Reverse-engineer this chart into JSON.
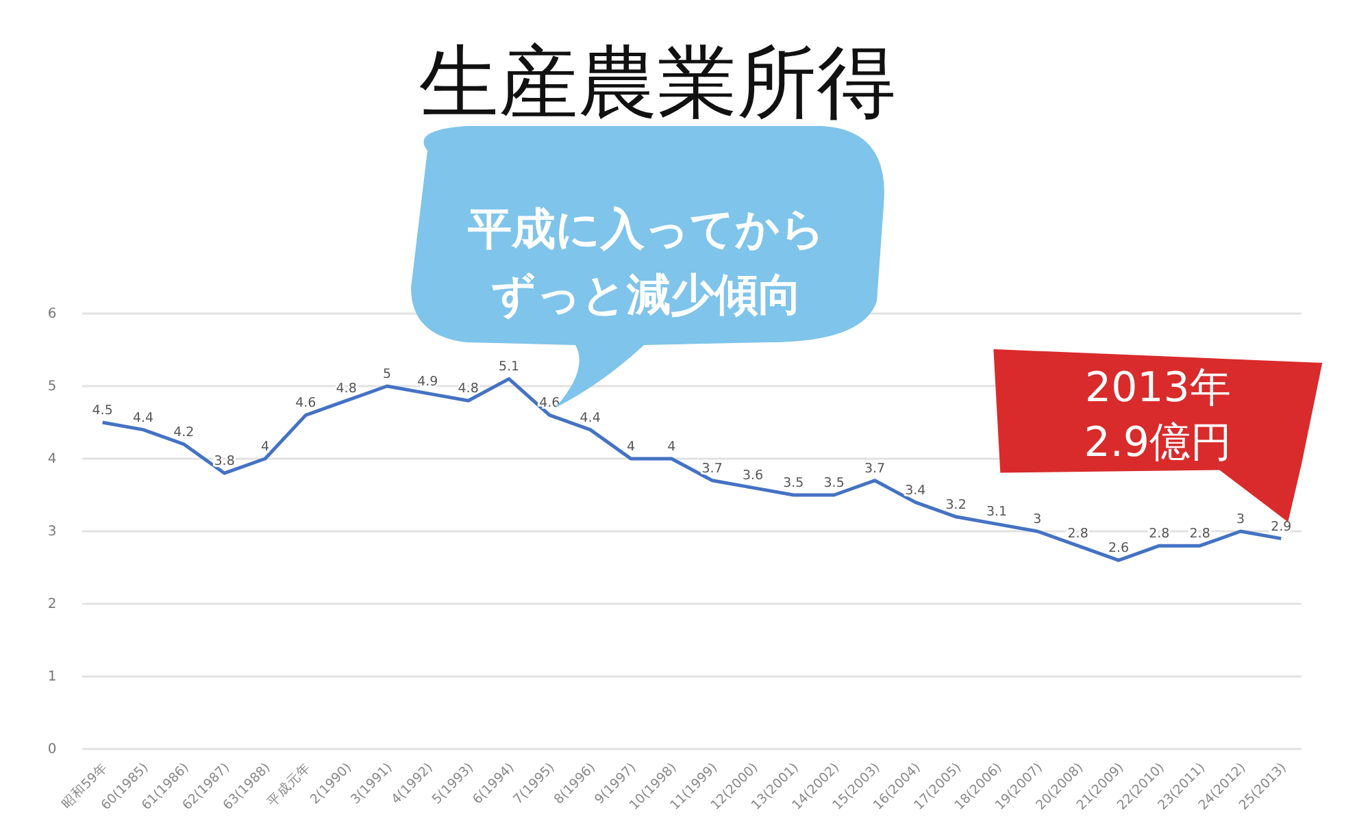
{
  "chart_data": {
    "type": "line",
    "title": "生産農業所得",
    "categories": [
      "昭和59年",
      "60(1985)",
      "61(1986)",
      "62(1987)",
      "63(1988)",
      "平成元年",
      "2(1990)",
      "3(1991)",
      "4(1992)",
      "5(1993)",
      "6(1994)",
      "7(1995)",
      "8(1996)",
      "9(1997)",
      "10(1998)",
      "11(1999)",
      "12(2000)",
      "13(2001)",
      "14(2002)",
      "15(2003)",
      "16(2004)",
      "17(2005)",
      "18(2006)",
      "19(2007)",
      "20(2008)",
      "21(2009)",
      "22(2010)",
      "23(2011)",
      "24(2012)",
      "25(2013)"
    ],
    "series": [
      {
        "color": "#4472c4",
        "values": [
          4.5,
          4.4,
          4.2,
          3.8,
          4,
          4.6,
          4.8,
          5,
          4.9,
          4.8,
          5.1,
          4.6,
          4.4,
          4,
          4,
          3.7,
          3.6,
          3.5,
          3.5,
          3.7,
          3.4,
          3.2,
          3.1,
          3,
          2.8,
          2.6,
          2.8,
          2.8,
          3,
          2.9
        ]
      }
    ],
    "ylim": [
      0,
      6
    ],
    "yticks": [
      0,
      1,
      2,
      3,
      4,
      5,
      6
    ],
    "grid": "y",
    "data_labels": true,
    "marker": "none",
    "annotations": [
      "平成に入ってからずっと減少傾向",
      {
        "text": "2013年\n2.9億円",
        "x": "25(2013)",
        "y": 2.9
      }
    ]
  }
}
